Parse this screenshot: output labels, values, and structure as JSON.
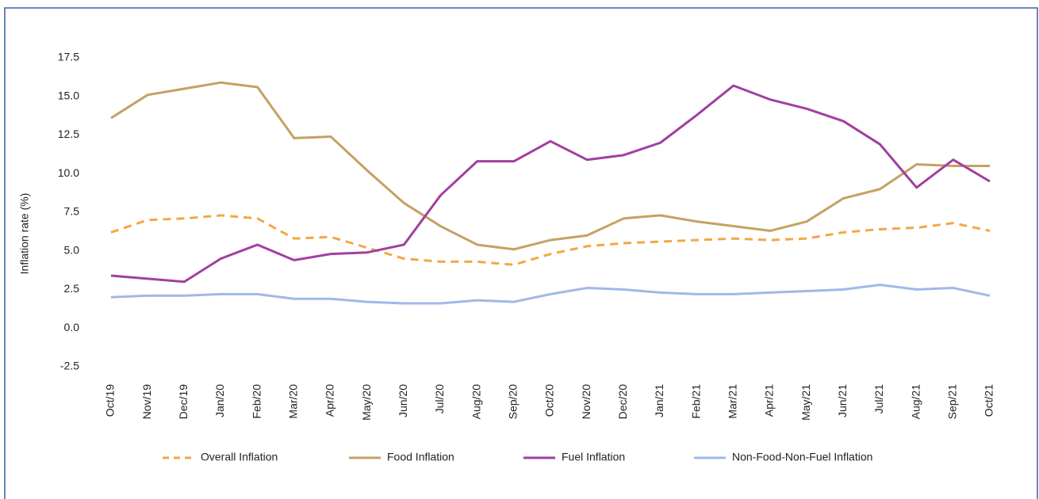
{
  "chart_data": {
    "type": "line",
    "y_label": "Inflation rate (%)",
    "categories": [
      "Oct/19",
      "Nov/19",
      "Dec/19",
      "Jan/20",
      "Feb/20",
      "Mar/20",
      "Apr/20",
      "May/20",
      "Jun/20",
      "Jul/20",
      "Aug/20",
      "Sep/20",
      "Oct/20",
      "Nov/20",
      "Dec/20",
      "Jan/21",
      "Feb/21",
      "Mar/21",
      "Apr/21",
      "May/21",
      "Jun/21",
      "Jul/21",
      "Aug/21",
      "Sep/21",
      "Oct/21"
    ],
    "series": [
      {
        "name": "Overall Inflation",
        "color": "#f4a742",
        "dashed": true,
        "values": [
          6.2,
          7.0,
          7.1,
          7.3,
          7.1,
          5.8,
          5.9,
          5.2,
          4.5,
          4.3,
          4.3,
          4.1,
          4.8,
          5.3,
          5.5,
          5.6,
          5.7,
          5.8,
          5.7,
          5.8,
          6.2,
          6.4,
          6.5,
          6.8,
          6.3
        ]
      },
      {
        "name": "Food Inflation",
        "color": "#c5a162",
        "dashed": false,
        "values": [
          13.6,
          15.1,
          15.5,
          15.9,
          15.6,
          12.3,
          12.4,
          10.2,
          8.1,
          6.6,
          5.4,
          5.1,
          5.7,
          6.0,
          7.1,
          7.3,
          6.9,
          6.6,
          6.3,
          6.9,
          8.4,
          9.0,
          10.6,
          10.5,
          10.5
        ]
      },
      {
        "name": "Fuel Inflation",
        "color": "#a23f9f",
        "dashed": false,
        "values": [
          3.4,
          3.2,
          3.0,
          4.5,
          5.4,
          4.4,
          4.8,
          4.9,
          5.4,
          8.6,
          10.8,
          10.8,
          12.1,
          10.9,
          11.2,
          12.0,
          13.8,
          15.7,
          14.8,
          14.2,
          13.4,
          11.9,
          9.1,
          10.9,
          9.5
        ]
      },
      {
        "name": "Non-Food-Non-Fuel Inflation",
        "color": "#9fb9e8",
        "dashed": false,
        "values": [
          2.0,
          2.1,
          2.1,
          2.2,
          2.2,
          1.9,
          1.9,
          1.7,
          1.6,
          1.6,
          1.8,
          1.7,
          2.2,
          2.6,
          2.5,
          2.3,
          2.2,
          2.2,
          2.3,
          2.4,
          2.5,
          2.8,
          2.5,
          2.6,
          2.1
        ]
      }
    ],
    "ylim": [
      -2.5,
      17.5
    ],
    "yticks": [
      -2.5,
      {
        "value": 0,
        "label": "0.0"
      },
      2.5,
      {
        "value": 5,
        "label": "5.0"
      },
      7.5,
      {
        "value": 10,
        "label": "10.0"
      },
      12.5,
      {
        "value": 15,
        "label": "15.0"
      },
      17.5
    ],
    "grid": false,
    "legend": "bottom"
  }
}
